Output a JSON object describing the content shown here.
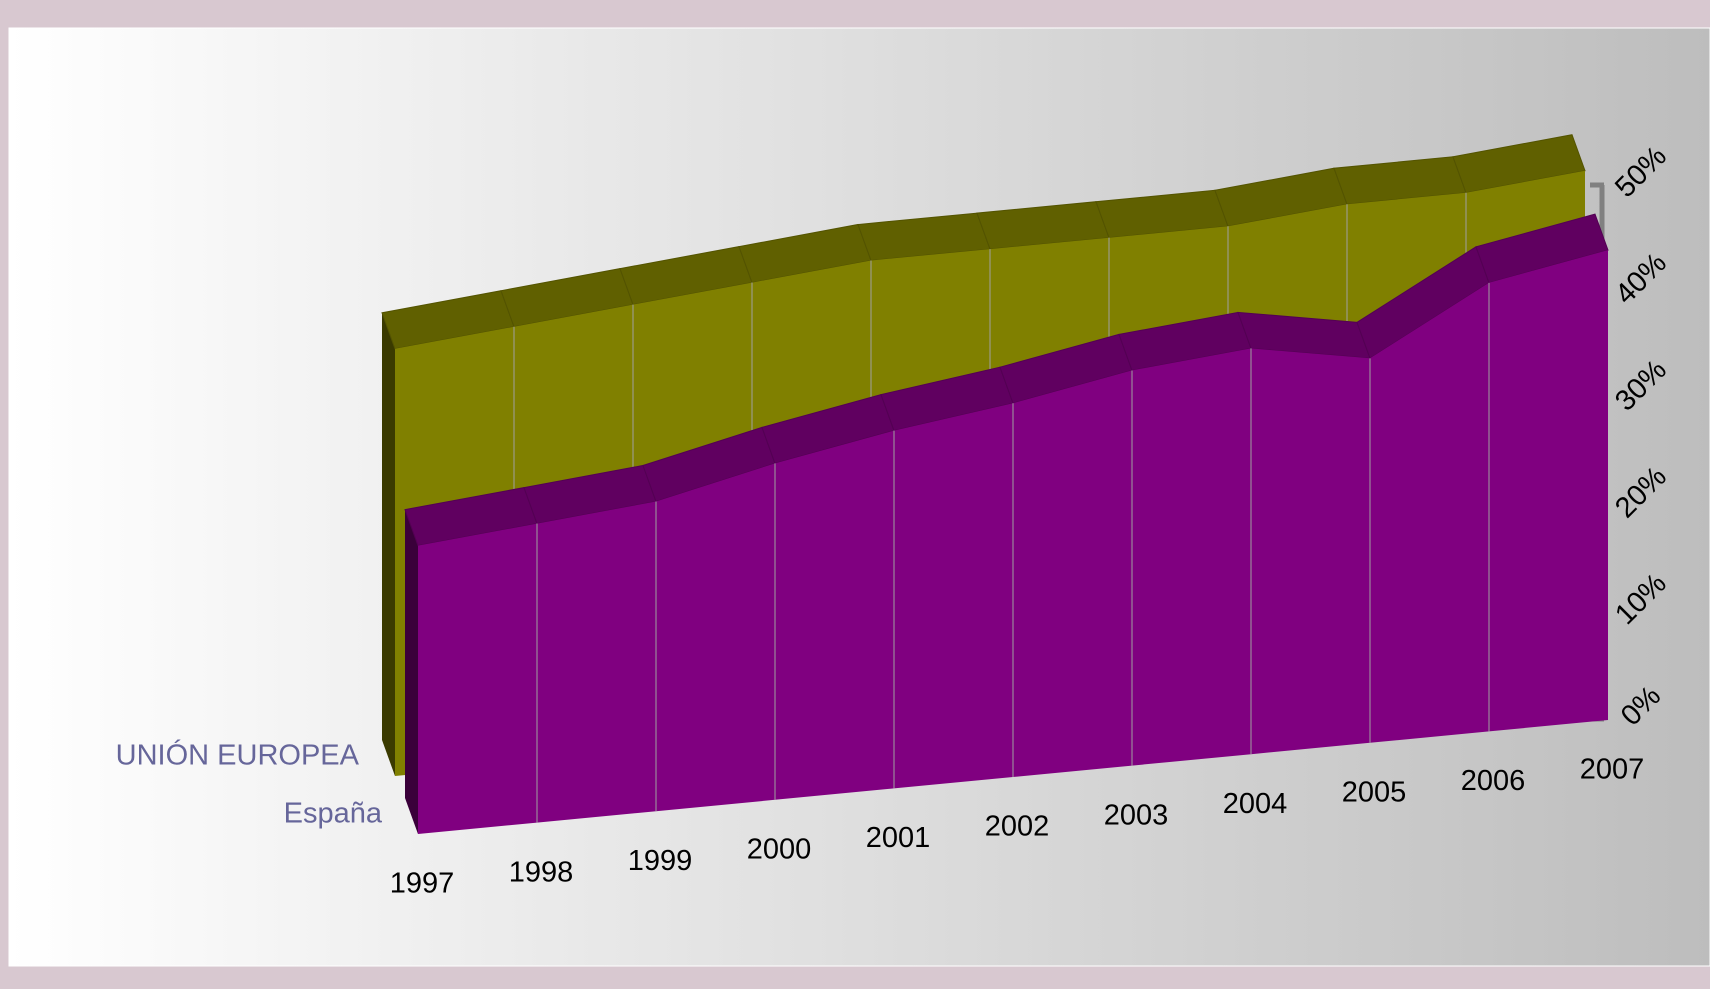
{
  "chart_data": {
    "type": "area3d",
    "categories": [
      "1997",
      "1998",
      "1999",
      "2000",
      "2001",
      "2002",
      "2003",
      "2004",
      "2005",
      "2006",
      "2007"
    ],
    "series": [
      {
        "name": "UNIÓN EUROPEA",
        "color": "#808000",
        "values": [
          40,
          41,
          42,
          43,
          44,
          44,
          44,
          44,
          45,
          45,
          46
        ]
      },
      {
        "name": "España",
        "color": "#800080",
        "values": [
          27,
          28,
          29,
          31.5,
          33.5,
          35,
          37,
          38,
          36,
          42,
          44
        ]
      }
    ],
    "ylim": [
      0,
      50
    ],
    "yticks": [
      {
        "value": 0,
        "label": "0%"
      },
      {
        "value": 10,
        "label": "10%"
      },
      {
        "value": 20,
        "label": "20%"
      },
      {
        "value": 30,
        "label": "30%"
      },
      {
        "value": 40,
        "label": "40%"
      },
      {
        "value": 50,
        "label": "50%"
      }
    ]
  }
}
